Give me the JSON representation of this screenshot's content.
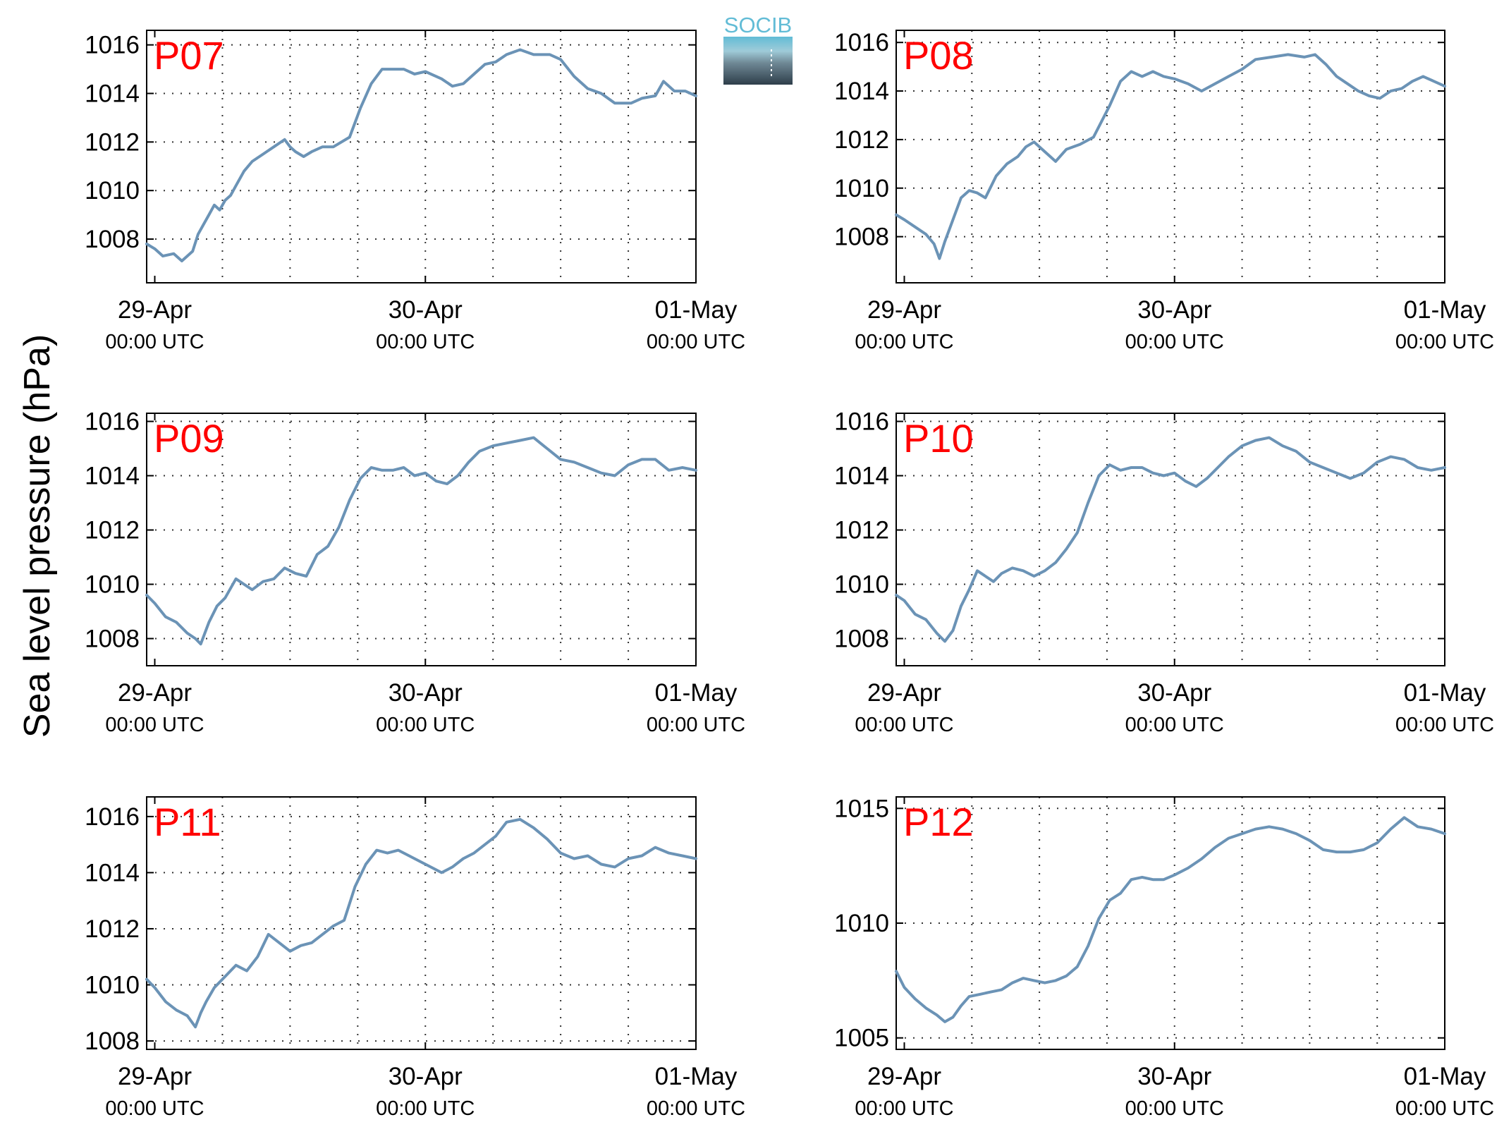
{
  "figure": {
    "ylabel": "Sea level pressure (hPa)",
    "logo_text": "SOCIB",
    "colors": {
      "line": "#6b93b6",
      "station_label": "#ff0000",
      "logo_top": "#62bcd6",
      "logo_bottom": "#2e3e4a"
    }
  },
  "chart_data": [
    {
      "type": "line",
      "title": "P07",
      "xlabel": "",
      "ylabel": "Sea level pressure (hPa)",
      "xlim": [
        -0.03,
        2.0
      ],
      "ylim": [
        1006.2,
        1016.6
      ],
      "yticks": [
        1008,
        1010,
        1012,
        1014,
        1016
      ],
      "xticks": [
        {
          "x": 0,
          "date": "29-Apr",
          "time": "00:00 UTC"
        },
        {
          "x": 1,
          "date": "30-Apr",
          "time": "00:00 UTC"
        },
        {
          "x": 2,
          "date": "01-May",
          "time": "00:00 UTC"
        }
      ],
      "grid": true,
      "series": [
        {
          "x": [
            -0.03,
            0.0,
            0.03,
            0.07,
            0.1,
            0.12,
            0.14,
            0.16,
            0.18,
            0.2,
            0.22,
            0.24,
            0.26,
            0.28,
            0.3,
            0.33,
            0.36,
            0.4,
            0.44,
            0.48,
            0.5,
            0.52,
            0.55,
            0.58,
            0.62,
            0.66,
            0.72,
            0.76,
            0.8,
            0.84,
            0.88,
            0.92,
            0.96,
            1.0,
            1.06,
            1.1,
            1.14,
            1.18,
            1.22,
            1.26,
            1.3,
            1.35,
            1.4,
            1.46,
            1.5,
            1.55,
            1.6,
            1.65,
            1.7,
            1.76,
            1.8,
            1.85,
            1.88,
            1.92,
            1.96,
            2.0
          ],
          "y": [
            1007.8,
            1007.6,
            1007.3,
            1007.4,
            1007.1,
            1007.3,
            1007.5,
            1008.2,
            1008.6,
            1009.0,
            1009.4,
            1009.2,
            1009.6,
            1009.8,
            1010.2,
            1010.8,
            1011.2,
            1011.5,
            1011.8,
            1012.1,
            1011.8,
            1011.6,
            1011.4,
            1011.6,
            1011.8,
            1011.8,
            1012.2,
            1013.4,
            1014.4,
            1015.0,
            1015.0,
            1015.0,
            1014.8,
            1014.9,
            1014.6,
            1014.3,
            1014.4,
            1014.8,
            1015.2,
            1015.3,
            1015.6,
            1015.8,
            1015.6,
            1015.6,
            1015.4,
            1014.7,
            1014.2,
            1014.0,
            1013.6,
            1013.6,
            1013.8,
            1013.9,
            1014.5,
            1014.1,
            1014.1,
            1013.9
          ]
        }
      ]
    },
    {
      "type": "line",
      "title": "P08",
      "xlabel": "",
      "ylabel": "Sea level pressure (hPa)",
      "xlim": [
        -0.03,
        2.0
      ],
      "ylim": [
        1006.1,
        1016.5
      ],
      "yticks": [
        1008,
        1010,
        1012,
        1014,
        1016
      ],
      "xticks": [
        {
          "x": 0,
          "date": "29-Apr",
          "time": "00:00 UTC"
        },
        {
          "x": 1,
          "date": "30-Apr",
          "time": "00:00 UTC"
        },
        {
          "x": 2,
          "date": "01-May",
          "time": "00:00 UTC"
        }
      ],
      "grid": true,
      "series": [
        {
          "x": [
            -0.03,
            0.0,
            0.04,
            0.08,
            0.11,
            0.13,
            0.15,
            0.17,
            0.19,
            0.21,
            0.24,
            0.27,
            0.3,
            0.34,
            0.38,
            0.42,
            0.45,
            0.48,
            0.52,
            0.56,
            0.6,
            0.65,
            0.7,
            0.76,
            0.8,
            0.84,
            0.88,
            0.92,
            0.96,
            1.0,
            1.05,
            1.1,
            1.15,
            1.2,
            1.25,
            1.3,
            1.36,
            1.42,
            1.48,
            1.52,
            1.56,
            1.6,
            1.64,
            1.68,
            1.72,
            1.76,
            1.8,
            1.84,
            1.88,
            1.92,
            1.96,
            2.0
          ],
          "y": [
            1008.9,
            1008.7,
            1008.4,
            1008.1,
            1007.7,
            1007.1,
            1007.8,
            1008.4,
            1009.0,
            1009.6,
            1009.9,
            1009.8,
            1009.6,
            1010.5,
            1011.0,
            1011.3,
            1011.7,
            1011.9,
            1011.5,
            1011.1,
            1011.6,
            1011.8,
            1012.1,
            1013.4,
            1014.4,
            1014.8,
            1014.6,
            1014.8,
            1014.6,
            1014.5,
            1014.3,
            1014.0,
            1014.3,
            1014.6,
            1014.9,
            1015.3,
            1015.4,
            1015.5,
            1015.4,
            1015.5,
            1015.1,
            1014.6,
            1014.3,
            1014.0,
            1013.8,
            1013.7,
            1014.0,
            1014.1,
            1014.4,
            1014.6,
            1014.4,
            1014.2
          ]
        }
      ]
    },
    {
      "type": "line",
      "title": "P09",
      "xlabel": "",
      "ylabel": "Sea level pressure (hPa)",
      "xlim": [
        -0.03,
        2.0
      ],
      "ylim": [
        1007.0,
        1016.3
      ],
      "yticks": [
        1008,
        1010,
        1012,
        1014,
        1016
      ],
      "xticks": [
        {
          "x": 0,
          "date": "29-Apr",
          "time": "00:00 UTC"
        },
        {
          "x": 1,
          "date": "30-Apr",
          "time": "00:00 UTC"
        },
        {
          "x": 2,
          "date": "01-May",
          "time": "00:00 UTC"
        }
      ],
      "grid": true,
      "series": [
        {
          "x": [
            -0.03,
            0.0,
            0.04,
            0.08,
            0.12,
            0.15,
            0.17,
            0.2,
            0.23,
            0.26,
            0.3,
            0.33,
            0.36,
            0.4,
            0.44,
            0.48,
            0.52,
            0.56,
            0.6,
            0.64,
            0.68,
            0.72,
            0.76,
            0.8,
            0.84,
            0.88,
            0.92,
            0.96,
            1.0,
            1.04,
            1.08,
            1.12,
            1.16,
            1.2,
            1.25,
            1.3,
            1.35,
            1.4,
            1.45,
            1.5,
            1.55,
            1.6,
            1.65,
            1.7,
            1.75,
            1.8,
            1.85,
            1.9,
            1.95,
            2.0
          ],
          "y": [
            1009.6,
            1009.3,
            1008.8,
            1008.6,
            1008.2,
            1008.0,
            1007.8,
            1008.6,
            1009.2,
            1009.5,
            1010.2,
            1010.0,
            1009.8,
            1010.1,
            1010.2,
            1010.6,
            1010.4,
            1010.3,
            1011.1,
            1011.4,
            1012.1,
            1013.1,
            1013.9,
            1014.3,
            1014.2,
            1014.2,
            1014.3,
            1014.0,
            1014.1,
            1013.8,
            1013.7,
            1014.0,
            1014.5,
            1014.9,
            1015.1,
            1015.2,
            1015.3,
            1015.4,
            1015.0,
            1014.6,
            1014.5,
            1014.3,
            1014.1,
            1014.0,
            1014.4,
            1014.6,
            1014.6,
            1014.2,
            1014.3,
            1014.2
          ]
        }
      ]
    },
    {
      "type": "line",
      "title": "P10",
      "xlabel": "",
      "ylabel": "Sea level pressure (hPa)",
      "xlim": [
        -0.03,
        2.0
      ],
      "ylim": [
        1007.0,
        1016.3
      ],
      "yticks": [
        1008,
        1010,
        1012,
        1014,
        1016
      ],
      "xticks": [
        {
          "x": 0,
          "date": "29-Apr",
          "time": "00:00 UTC"
        },
        {
          "x": 1,
          "date": "30-Apr",
          "time": "00:00 UTC"
        },
        {
          "x": 2,
          "date": "01-May",
          "time": "00:00 UTC"
        }
      ],
      "grid": true,
      "series": [
        {
          "x": [
            -0.03,
            0.0,
            0.04,
            0.08,
            0.12,
            0.15,
            0.18,
            0.21,
            0.24,
            0.27,
            0.3,
            0.33,
            0.36,
            0.4,
            0.44,
            0.48,
            0.52,
            0.56,
            0.6,
            0.64,
            0.68,
            0.72,
            0.76,
            0.8,
            0.84,
            0.88,
            0.92,
            0.96,
            1.0,
            1.04,
            1.08,
            1.12,
            1.16,
            1.2,
            1.25,
            1.3,
            1.35,
            1.4,
            1.45,
            1.5,
            1.55,
            1.6,
            1.65,
            1.7,
            1.75,
            1.8,
            1.85,
            1.9,
            1.95,
            2.0
          ],
          "y": [
            1009.6,
            1009.4,
            1008.9,
            1008.7,
            1008.2,
            1007.9,
            1008.3,
            1009.2,
            1009.8,
            1010.5,
            1010.3,
            1010.1,
            1010.4,
            1010.6,
            1010.5,
            1010.3,
            1010.5,
            1010.8,
            1011.3,
            1011.9,
            1013.0,
            1014.0,
            1014.4,
            1014.2,
            1014.3,
            1014.3,
            1014.1,
            1014.0,
            1014.1,
            1013.8,
            1013.6,
            1013.9,
            1014.3,
            1014.7,
            1015.1,
            1015.3,
            1015.4,
            1015.1,
            1014.9,
            1014.5,
            1014.3,
            1014.1,
            1013.9,
            1014.1,
            1014.5,
            1014.7,
            1014.6,
            1014.3,
            1014.2,
            1014.3
          ]
        }
      ]
    },
    {
      "type": "line",
      "title": "P11",
      "xlabel": "",
      "ylabel": "Sea level pressure (hPa)",
      "xlim": [
        -0.03,
        2.0
      ],
      "ylim": [
        1007.7,
        1016.7
      ],
      "yticks": [
        1008,
        1010,
        1012,
        1014,
        1016
      ],
      "xticks": [
        {
          "x": 0,
          "date": "29-Apr",
          "time": "00:00 UTC"
        },
        {
          "x": 1,
          "date": "30-Apr",
          "time": "00:00 UTC"
        },
        {
          "x": 2,
          "date": "01-May",
          "time": "00:00 UTC"
        }
      ],
      "grid": true,
      "series": [
        {
          "x": [
            -0.03,
            0.0,
            0.04,
            0.08,
            0.12,
            0.15,
            0.17,
            0.19,
            0.22,
            0.26,
            0.3,
            0.34,
            0.38,
            0.42,
            0.46,
            0.5,
            0.54,
            0.58,
            0.62,
            0.66,
            0.7,
            0.74,
            0.78,
            0.82,
            0.86,
            0.9,
            0.94,
            0.98,
            1.02,
            1.06,
            1.1,
            1.14,
            1.18,
            1.22,
            1.26,
            1.3,
            1.35,
            1.4,
            1.45,
            1.5,
            1.55,
            1.6,
            1.65,
            1.7,
            1.75,
            1.8,
            1.85,
            1.9,
            1.95,
            2.0
          ],
          "y": [
            1010.2,
            1009.9,
            1009.4,
            1009.1,
            1008.9,
            1008.5,
            1009.0,
            1009.4,
            1009.9,
            1010.3,
            1010.7,
            1010.5,
            1011.0,
            1011.8,
            1011.5,
            1011.2,
            1011.4,
            1011.5,
            1011.8,
            1012.1,
            1012.3,
            1013.5,
            1014.3,
            1014.8,
            1014.7,
            1014.8,
            1014.6,
            1014.4,
            1014.2,
            1014.0,
            1014.2,
            1014.5,
            1014.7,
            1015.0,
            1015.3,
            1015.8,
            1015.9,
            1015.6,
            1015.2,
            1014.7,
            1014.5,
            1014.6,
            1014.3,
            1014.2,
            1014.5,
            1014.6,
            1014.9,
            1014.7,
            1014.6,
            1014.5
          ]
        }
      ]
    },
    {
      "type": "line",
      "title": "P12",
      "xlabel": "",
      "ylabel": "Sea level pressure (hPa)",
      "xlim": [
        -0.03,
        2.0
      ],
      "ylim": [
        1004.5,
        1015.5
      ],
      "yticks": [
        1005,
        1010,
        1015
      ],
      "xticks": [
        {
          "x": 0,
          "date": "29-Apr",
          "time": "00:00 UTC"
        },
        {
          "x": 1,
          "date": "30-Apr",
          "time": "00:00 UTC"
        },
        {
          "x": 2,
          "date": "01-May",
          "time": "00:00 UTC"
        }
      ],
      "grid": true,
      "series": [
        {
          "x": [
            -0.03,
            0.0,
            0.04,
            0.08,
            0.12,
            0.15,
            0.18,
            0.21,
            0.24,
            0.28,
            0.32,
            0.36,
            0.4,
            0.44,
            0.48,
            0.52,
            0.56,
            0.6,
            0.64,
            0.68,
            0.72,
            0.76,
            0.8,
            0.84,
            0.88,
            0.92,
            0.96,
            1.0,
            1.05,
            1.1,
            1.15,
            1.2,
            1.25,
            1.3,
            1.35,
            1.4,
            1.45,
            1.5,
            1.55,
            1.6,
            1.65,
            1.7,
            1.75,
            1.8,
            1.85,
            1.9,
            1.95,
            2.0
          ],
          "y": [
            1007.9,
            1007.2,
            1006.7,
            1006.3,
            1006.0,
            1005.7,
            1005.9,
            1006.4,
            1006.8,
            1006.9,
            1007.0,
            1007.1,
            1007.4,
            1007.6,
            1007.5,
            1007.4,
            1007.5,
            1007.7,
            1008.1,
            1009.0,
            1010.2,
            1011.0,
            1011.3,
            1011.9,
            1012.0,
            1011.9,
            1011.9,
            1012.1,
            1012.4,
            1012.8,
            1013.3,
            1013.7,
            1013.9,
            1014.1,
            1014.2,
            1014.1,
            1013.9,
            1013.6,
            1013.2,
            1013.1,
            1013.1,
            1013.2,
            1013.5,
            1014.1,
            1014.6,
            1014.2,
            1014.1,
            1013.9
          ]
        }
      ]
    }
  ]
}
